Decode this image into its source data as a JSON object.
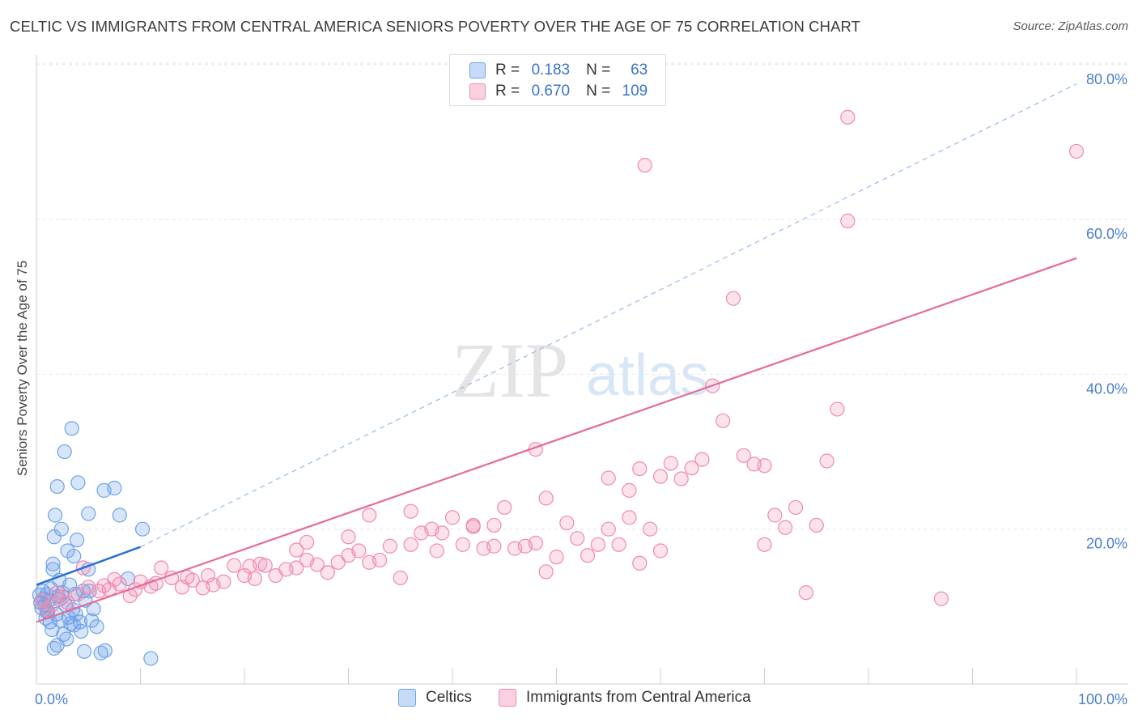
{
  "title": "CELTIC VS IMMIGRANTS FROM CENTRAL AMERICA SENIORS POVERTY OVER THE AGE OF 75 CORRELATION CHART",
  "source": "Source: ZipAtlas.com",
  "watermark": {
    "zip": "ZIP",
    "atlas": "atlas"
  },
  "legend": {
    "r_label": "R =",
    "n_label": "N =",
    "items": [
      {
        "r": "0.183",
        "n": "63"
      },
      {
        "r": "0.670",
        "n": "109"
      }
    ]
  },
  "chart_data": {
    "type": "scatter",
    "title": "CELTIC VS IMMIGRANTS FROM CENTRAL AMERICA SENIORS POVERTY OVER THE AGE OF 75 CORRELATION CHART",
    "xlabel": "",
    "ylabel": "Seniors Poverty Over the Age of 75",
    "xlim": [
      0,
      100
    ],
    "ylim": [
      0,
      82
    ],
    "x_tick_labels": [
      "0.0%",
      "100.0%"
    ],
    "y_ticks": [
      20,
      40,
      60,
      80
    ],
    "y_tick_labels": [
      "20.0%",
      "40.0%",
      "60.0%",
      "80.0%"
    ],
    "grid": true,
    "colors": {
      "celtic": "#6fa3e8",
      "central_america": "#f08ab0",
      "celtic_line": "#2a6fd1",
      "central_america_line": "#e66a98",
      "dashed": "#9dc0ea"
    },
    "series": [
      {
        "name": "Celtics",
        "trend": {
          "x": [
            0,
            10
          ],
          "y": [
            12.8,
            17.7
          ]
        },
        "extension": {
          "x": [
            10,
            100
          ],
          "y": [
            17.7,
            77.5
          ]
        },
        "points": [
          [
            0.3,
            11.5
          ],
          [
            0.4,
            10.5
          ],
          [
            0.5,
            9.8
          ],
          [
            0.6,
            12.0
          ],
          [
            0.7,
            11.0
          ],
          [
            0.8,
            10.2
          ],
          [
            0.9,
            8.5
          ],
          [
            1.0,
            11.6
          ],
          [
            1.1,
            9.4
          ],
          [
            1.2,
            10.8
          ],
          [
            1.3,
            8.0
          ],
          [
            1.4,
            12.3
          ],
          [
            1.5,
            7.0
          ],
          [
            1.6,
            15.5
          ],
          [
            1.6,
            14.8
          ],
          [
            1.7,
            19.0
          ],
          [
            1.8,
            21.8
          ],
          [
            1.9,
            9.0
          ],
          [
            2.0,
            25.5
          ],
          [
            2.1,
            11.3
          ],
          [
            2.2,
            13.4
          ],
          [
            2.3,
            8.2
          ],
          [
            2.4,
            20.0
          ],
          [
            2.5,
            11.8
          ],
          [
            2.6,
            6.4
          ],
          [
            2.7,
            30.0
          ],
          [
            2.8,
            10.2
          ],
          [
            2.9,
            5.8
          ],
          [
            3.0,
            17.2
          ],
          [
            3.1,
            8.6
          ],
          [
            3.2,
            12.8
          ],
          [
            3.3,
            7.8
          ],
          [
            3.4,
            33.0
          ],
          [
            3.5,
            9.6
          ],
          [
            3.6,
            16.5
          ],
          [
            3.7,
            11.6
          ],
          [
            3.8,
            9.0
          ],
          [
            3.9,
            18.6
          ],
          [
            4.0,
            26.0
          ],
          [
            4.2,
            8.0
          ],
          [
            4.3,
            6.8
          ],
          [
            4.5,
            12.0
          ],
          [
            4.7,
            10.8
          ],
          [
            5.0,
            14.8
          ],
          [
            5.1,
            12.0
          ],
          [
            5.3,
            8.2
          ],
          [
            5.5,
            9.7
          ],
          [
            5.8,
            7.4
          ],
          [
            6.2,
            4.0
          ],
          [
            6.6,
            4.3
          ],
          [
            2.0,
            5.0
          ],
          [
            1.7,
            4.6
          ],
          [
            3.6,
            7.6
          ],
          [
            4.6,
            4.2
          ],
          [
            5.0,
            22.0
          ],
          [
            6.5,
            25.0
          ],
          [
            7.5,
            25.3
          ],
          [
            8.0,
            21.8
          ],
          [
            8.8,
            13.6
          ],
          [
            10.2,
            20.0
          ],
          [
            11.0,
            3.3
          ],
          [
            1.0,
            9.3
          ],
          [
            2.2,
            10.9
          ]
        ]
      },
      {
        "name": "Immigrants from Central America",
        "trend": {
          "x": [
            0,
            100
          ],
          "y": [
            8.0,
            55.0
          ]
        },
        "points": [
          [
            0.5,
            10.8
          ],
          [
            1.0,
            9.6
          ],
          [
            1.5,
            10.2
          ],
          [
            2.0,
            11.8
          ],
          [
            2.5,
            11.2
          ],
          [
            3.0,
            10.5
          ],
          [
            4.0,
            11.6
          ],
          [
            4.5,
            15.0
          ],
          [
            5.0,
            12.5
          ],
          [
            6.0,
            12.0
          ],
          [
            6.5,
            12.7
          ],
          [
            7.0,
            12.2
          ],
          [
            7.5,
            13.5
          ],
          [
            8.0,
            12.9
          ],
          [
            9.0,
            11.4
          ],
          [
            9.5,
            12.2
          ],
          [
            10.0,
            13.2
          ],
          [
            11.0,
            12.6
          ],
          [
            11.5,
            13.0
          ],
          [
            12.0,
            15.0
          ],
          [
            13.0,
            13.7
          ],
          [
            14.0,
            12.5
          ],
          [
            14.5,
            13.8
          ],
          [
            15.0,
            13.4
          ],
          [
            16.0,
            12.4
          ],
          [
            16.5,
            14.0
          ],
          [
            17.0,
            12.8
          ],
          [
            18.0,
            13.2
          ],
          [
            19.0,
            15.3
          ],
          [
            20.0,
            14.0
          ],
          [
            20.5,
            15.2
          ],
          [
            21.0,
            13.6
          ],
          [
            21.5,
            15.5
          ],
          [
            22.0,
            15.3
          ],
          [
            23.0,
            14.0
          ],
          [
            24.0,
            14.8
          ],
          [
            25.0,
            15.0
          ],
          [
            26.0,
            16.0
          ],
          [
            27.0,
            15.4
          ],
          [
            28.0,
            14.4
          ],
          [
            29.0,
            15.7
          ],
          [
            30.0,
            16.6
          ],
          [
            31.0,
            17.2
          ],
          [
            32.0,
            15.7
          ],
          [
            33.0,
            16.0
          ],
          [
            34.0,
            17.8
          ],
          [
            35.0,
            13.7
          ],
          [
            36.0,
            18.0
          ],
          [
            37.0,
            19.5
          ],
          [
            38.0,
            20.0
          ],
          [
            39.0,
            19.5
          ],
          [
            40.0,
            21.5
          ],
          [
            41.0,
            18.0
          ],
          [
            42.0,
            20.5
          ],
          [
            43.0,
            17.5
          ],
          [
            44.0,
            20.5
          ],
          [
            45.0,
            22.8
          ],
          [
            46.0,
            17.5
          ],
          [
            47.0,
            17.8
          ],
          [
            48.0,
            18.2
          ],
          [
            49.0,
            14.5
          ],
          [
            50.0,
            16.4
          ],
          [
            51.0,
            20.8
          ],
          [
            52.0,
            18.8
          ],
          [
            53.0,
            16.6
          ],
          [
            54.0,
            18.0
          ],
          [
            55.0,
            20.0
          ],
          [
            56.0,
            18.0
          ],
          [
            57.0,
            21.5
          ],
          [
            58.0,
            15.6
          ],
          [
            59.0,
            20.0
          ],
          [
            60.0,
            17.2
          ],
          [
            61.0,
            28.5
          ],
          [
            62.0,
            26.5
          ],
          [
            63.0,
            27.9
          ],
          [
            64.0,
            29.0
          ],
          [
            65.0,
            38.5
          ],
          [
            66.0,
            34.0
          ],
          [
            67.0,
            49.8
          ],
          [
            68.0,
            29.5
          ],
          [
            69.0,
            28.4
          ],
          [
            70.0,
            18.0
          ],
          [
            71.0,
            21.8
          ],
          [
            72.0,
            20.2
          ],
          [
            73.0,
            22.8
          ],
          [
            74.0,
            11.8
          ],
          [
            75.0,
            20.5
          ],
          [
            76.0,
            28.8
          ],
          [
            58.0,
            27.8
          ],
          [
            48.0,
            30.3
          ],
          [
            38.5,
            17.2
          ],
          [
            55.0,
            26.6
          ],
          [
            32.0,
            21.8
          ],
          [
            44.0,
            17.8
          ],
          [
            36.0,
            22.3
          ],
          [
            60.0,
            26.8
          ],
          [
            70.0,
            28.2
          ],
          [
            78.0,
            59.8
          ],
          [
            57.0,
            25.0
          ],
          [
            77.0,
            35.5
          ],
          [
            58.5,
            67.0
          ],
          [
            78.0,
            73.2
          ],
          [
            100.0,
            68.8
          ],
          [
            87.0,
            11.0
          ],
          [
            49.0,
            24.0
          ],
          [
            42.0,
            20.3
          ],
          [
            30.0,
            19.0
          ],
          [
            25.0,
            17.3
          ],
          [
            26.0,
            18.3
          ]
        ]
      }
    ]
  },
  "bottom_legend": [
    "Celtics",
    "Immigrants from Central America"
  ]
}
